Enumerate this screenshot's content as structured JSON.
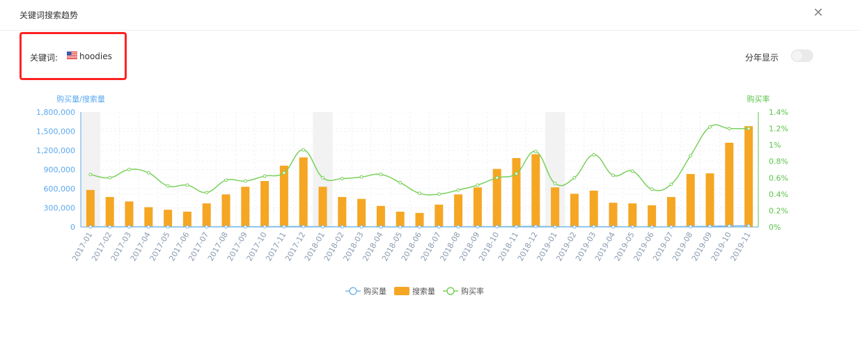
{
  "dialog": {
    "title": "关键词搜索趋势",
    "close_icon": "close-icon"
  },
  "keyword": {
    "label": "关键词:",
    "flag_icon": "us-flag-icon",
    "value": "hoodies"
  },
  "year_toggle": {
    "label": "分年显示",
    "on": false
  },
  "colors": {
    "purchases": "#7ab8e8",
    "searches": "#f5a623",
    "rate": "#78d05a",
    "left_axis": "#5aa9f0",
    "right_axis": "#5cc34a",
    "highlight_box": "#ff2222"
  },
  "chart_data": {
    "type": "bar+line",
    "left_axis_title": "购买量/搜索量",
    "right_axis_title": "购买率",
    "left_ticks": [
      "0",
      "300,000",
      "600,000",
      "900,000",
      "1,200,000",
      "1,500,000",
      "1,800,000"
    ],
    "right_ticks": [
      "0%",
      "0.2%",
      "0.4%",
      "0.6%",
      "0.8%",
      "1%",
      "1.2%",
      "1.4%"
    ],
    "ylim_left": [
      0,
      1800000
    ],
    "ylim_right": [
      0,
      1.4
    ],
    "categories": [
      "2017-01",
      "2017-02",
      "2017-03",
      "2017-04",
      "2017-05",
      "2017-06",
      "2017-07",
      "2017-08",
      "2017-09",
      "2017-10",
      "2017-11",
      "2017-12",
      "2018-01",
      "2018-02",
      "2018-03",
      "2018-04",
      "2018-05",
      "2018-06",
      "2018-07",
      "2018-08",
      "2018-09",
      "2018-10",
      "2018-11",
      "2018-12",
      "2019-01",
      "2019-02",
      "2019-03",
      "2019-04",
      "2019-05",
      "2019-06",
      "2019-07",
      "2019-08",
      "2019-09",
      "2019-10",
      "2019-11"
    ],
    "highlighted_months": [
      "2017-01",
      "2018-01",
      "2019-01"
    ],
    "series": [
      {
        "name": "购买量",
        "type": "line",
        "axis": "left",
        "values": [
          3500,
          2800,
          2800,
          2100,
          1800,
          1300,
          2400,
          3200,
          4100,
          5000,
          6300,
          7500,
          3800,
          2900,
          2700,
          2100,
          1600,
          1200,
          2200,
          3200,
          4000,
          5500,
          6900,
          10100,
          3300,
          3200,
          5000,
          2400,
          2600,
          1600,
          2400,
          7500,
          10300,
          15900,
          19000
        ]
      },
      {
        "name": "搜索量",
        "type": "bar",
        "axis": "left",
        "values": [
          580000,
          470000,
          400000,
          310000,
          270000,
          240000,
          370000,
          510000,
          630000,
          720000,
          960000,
          1090000,
          630000,
          470000,
          440000,
          330000,
          240000,
          220000,
          350000,
          510000,
          620000,
          910000,
          1080000,
          1140000,
          620000,
          520000,
          570000,
          380000,
          370000,
          340000,
          470000,
          830000,
          840000,
          1320000,
          1580000
        ]
      },
      {
        "name": "购买率",
        "type": "line",
        "axis": "right",
        "values": [
          0.64,
          0.6,
          0.7,
          0.66,
          0.5,
          0.51,
          0.42,
          0.57,
          0.56,
          0.62,
          0.66,
          0.94,
          0.6,
          0.59,
          0.61,
          0.64,
          0.54,
          0.41,
          0.4,
          0.45,
          0.51,
          0.6,
          0.65,
          0.92,
          0.53,
          0.6,
          0.88,
          0.63,
          0.68,
          0.46,
          0.52,
          0.87,
          1.22,
          1.2,
          1.2
        ]
      }
    ],
    "legend": [
      "购买量",
      "搜索量",
      "购买率"
    ],
    "legend_position": "bottom-center"
  }
}
